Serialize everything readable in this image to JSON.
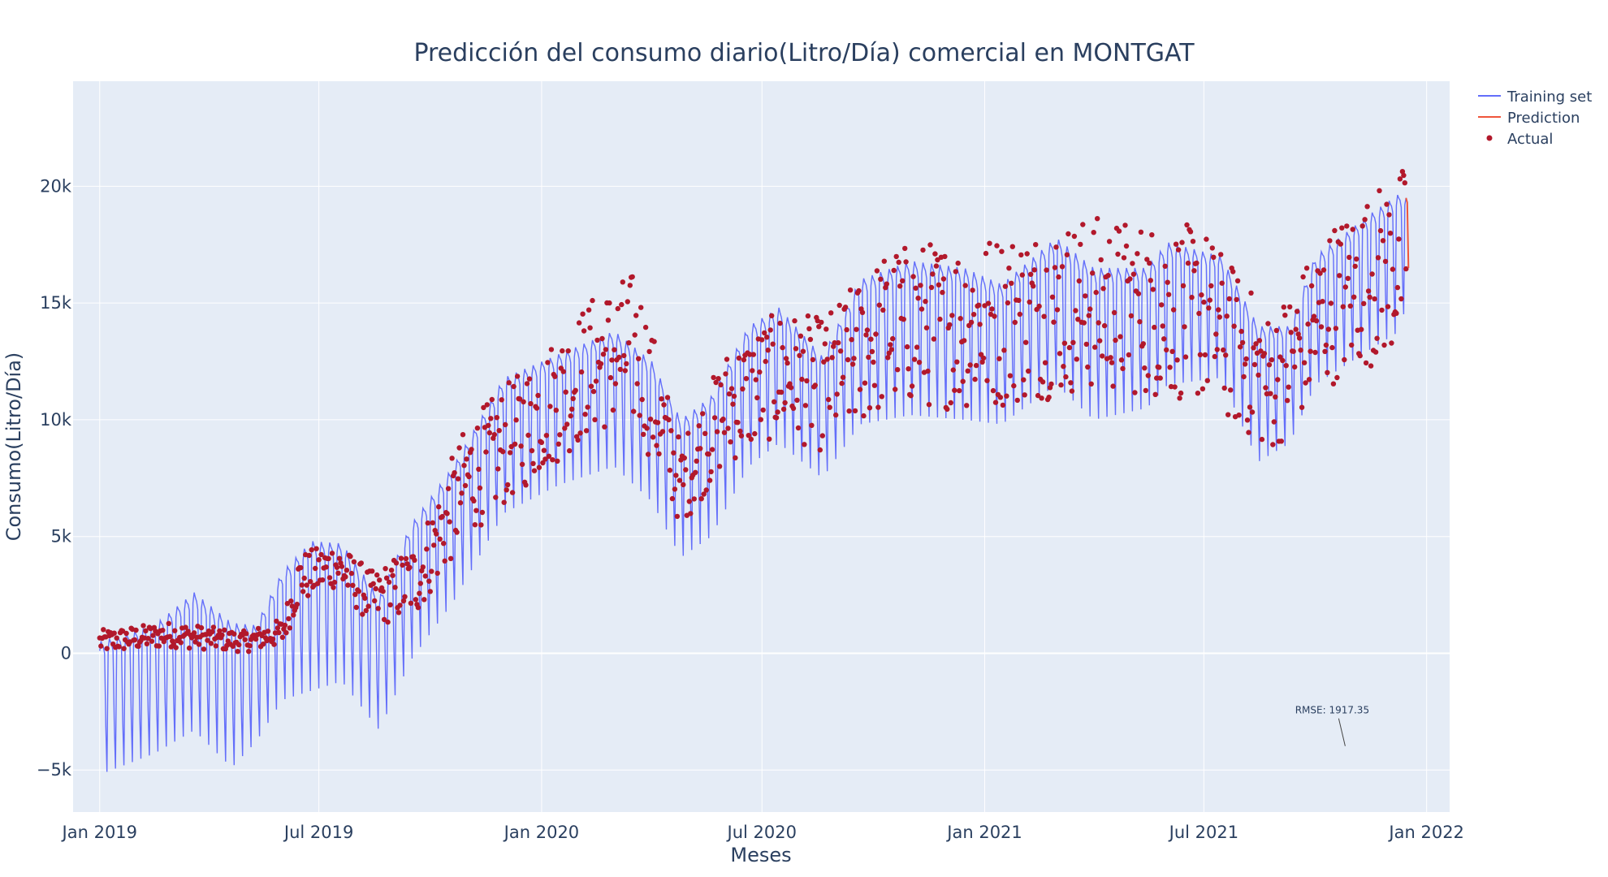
{
  "chart_data": {
    "type": "line",
    "title": "Predicción del consumo diario(Litro/Día) comercial en MONTGAT",
    "xlabel": "Meses",
    "ylabel": "Consumo(Litro/Día)",
    "x_range": [
      "2018-12-10",
      "2022-01-20"
    ],
    "ylim": [
      -6800,
      24500
    ],
    "x_ticks": [
      {
        "date": "2019-01-01",
        "label": "Jan 2019"
      },
      {
        "date": "2019-07-01",
        "label": "Jul 2019"
      },
      {
        "date": "2020-01-01",
        "label": "Jan 2020"
      },
      {
        "date": "2020-07-01",
        "label": "Jul 2020"
      },
      {
        "date": "2021-01-01",
        "label": "Jan 2021"
      },
      {
        "date": "2021-07-01",
        "label": "Jul 2021"
      },
      {
        "date": "2022-01-01",
        "label": "Jan 2022"
      }
    ],
    "y_ticks": [
      {
        "value": -5000,
        "label": "−5k"
      },
      {
        "value": 0,
        "label": "0"
      },
      {
        "value": 5000,
        "label": "5k"
      },
      {
        "value": 10000,
        "label": "10k"
      },
      {
        "value": 15000,
        "label": "15k"
      },
      {
        "value": 20000,
        "label": "20k"
      }
    ],
    "grid": true,
    "legend_position": "top-right",
    "series": [
      {
        "name": "Training set",
        "kind": "line",
        "color": "#636efa",
        "weekly_cycle": true,
        "envelope": [
          {
            "date": "2019-01-01",
            "high": 500,
            "low": -5200
          },
          {
            "date": "2019-02-15",
            "high": 1200,
            "low": -4300
          },
          {
            "date": "2019-03-20",
            "high": 2600,
            "low": -3300
          },
          {
            "date": "2019-04-20",
            "high": 1300,
            "low": -4900
          },
          {
            "date": "2019-05-10",
            "high": 1200,
            "low": -3800
          },
          {
            "date": "2019-06-01",
            "high": 3500,
            "low": -2000
          },
          {
            "date": "2019-06-25",
            "high": 4800,
            "low": -1600
          },
          {
            "date": "2019-07-20",
            "high": 4700,
            "low": -1200
          },
          {
            "date": "2019-08-20",
            "high": 2400,
            "low": -3300
          },
          {
            "date": "2019-09-15",
            "high": 5500,
            "low": -300
          },
          {
            "date": "2019-10-20",
            "high": 8000,
            "low": 2200
          },
          {
            "date": "2019-12-01",
            "high": 11800,
            "low": 6000
          },
          {
            "date": "2020-01-15",
            "high": 12800,
            "low": 7200
          },
          {
            "date": "2020-03-01",
            "high": 13800,
            "low": 8000
          },
          {
            "date": "2020-04-01",
            "high": 12500,
            "low": 6500
          },
          {
            "date": "2020-04-25",
            "high": 10000,
            "low": 4100
          },
          {
            "date": "2020-05-20",
            "high": 11000,
            "low": 5000
          },
          {
            "date": "2020-06-20",
            "high": 14000,
            "low": 8000
          },
          {
            "date": "2020-07-15",
            "high": 14800,
            "low": 9000
          },
          {
            "date": "2020-08-20",
            "high": 12700,
            "low": 7500
          },
          {
            "date": "2020-09-20",
            "high": 16000,
            "low": 9800
          },
          {
            "date": "2020-11-01",
            "high": 16800,
            "low": 10200
          },
          {
            "date": "2020-12-15",
            "high": 16500,
            "low": 10000
          },
          {
            "date": "2021-01-15",
            "high": 15800,
            "low": 9800
          },
          {
            "date": "2021-03-01",
            "high": 17800,
            "low": 11500
          },
          {
            "date": "2021-04-01",
            "high": 16500,
            "low": 10000
          },
          {
            "date": "2021-05-15",
            "high": 16500,
            "low": 10500
          },
          {
            "date": "2021-06-01",
            "high": 17600,
            "low": 11500
          },
          {
            "date": "2021-07-15",
            "high": 17000,
            "low": 11800
          },
          {
            "date": "2021-08-15",
            "high": 14000,
            "low": 8200
          },
          {
            "date": "2021-09-10",
            "high": 14000,
            "low": 9000
          },
          {
            "date": "2021-10-01",
            "high": 17000,
            "low": 11500
          },
          {
            "date": "2021-11-15",
            "high": 18800,
            "low": 13000
          },
          {
            "date": "2021-12-10",
            "high": 19700,
            "low": 13800
          },
          {
            "date": "2021-12-15",
            "high": 19500,
            "low": 15000
          }
        ]
      },
      {
        "name": "Prediction",
        "kind": "line",
        "color": "#ef553b",
        "x": [
          "2021-12-15",
          "2021-12-16",
          "2021-12-17"
        ],
        "y": [
          19500,
          19300,
          16500
        ]
      },
      {
        "name": "Actual",
        "kind": "markers",
        "color": "#b2182b",
        "cloud": [
          {
            "date": "2019-01-01",
            "center": 500,
            "spread": 500
          },
          {
            "date": "2019-03-01",
            "center": 800,
            "spread": 550
          },
          {
            "date": "2019-05-01",
            "center": 500,
            "spread": 450
          },
          {
            "date": "2019-06-01",
            "center": 900,
            "spread": 600
          },
          {
            "date": "2019-06-15",
            "center": 3200,
            "spread": 1100
          },
          {
            "date": "2019-07-15",
            "center": 3800,
            "spread": 1000
          },
          {
            "date": "2019-08-15",
            "center": 2300,
            "spread": 1200
          },
          {
            "date": "2019-09-20",
            "center": 3200,
            "spread": 1600
          },
          {
            "date": "2019-11-01",
            "center": 7500,
            "spread": 2500
          },
          {
            "date": "2019-12-15",
            "center": 9500,
            "spread": 2600
          },
          {
            "date": "2020-02-15",
            "center": 12500,
            "spread": 3000
          },
          {
            "date": "2020-03-20",
            "center": 13000,
            "spread": 3500
          },
          {
            "date": "2020-04-25",
            "center": 7200,
            "spread": 1800
          },
          {
            "date": "2020-06-01",
            "center": 10500,
            "spread": 2500
          },
          {
            "date": "2020-07-15",
            "center": 12000,
            "spread": 2700
          },
          {
            "date": "2020-08-20",
            "center": 11500,
            "spread": 2900
          },
          {
            "date": "2020-10-15",
            "center": 14000,
            "spread": 3500
          },
          {
            "date": "2021-01-01",
            "center": 14200,
            "spread": 3800
          },
          {
            "date": "2021-04-01",
            "center": 15000,
            "spread": 3800
          },
          {
            "date": "2021-07-01",
            "center": 14500,
            "spread": 3800
          },
          {
            "date": "2021-08-25",
            "center": 11500,
            "spread": 3000
          },
          {
            "date": "2021-10-15",
            "center": 15000,
            "spread": 3500
          },
          {
            "date": "2021-12-15",
            "center": 17000,
            "spread": 4000
          }
        ]
      }
    ],
    "annotations": [
      {
        "text": "RMSE: 1917.35",
        "date": "2021-10-15",
        "value": -3000
      }
    ]
  }
}
